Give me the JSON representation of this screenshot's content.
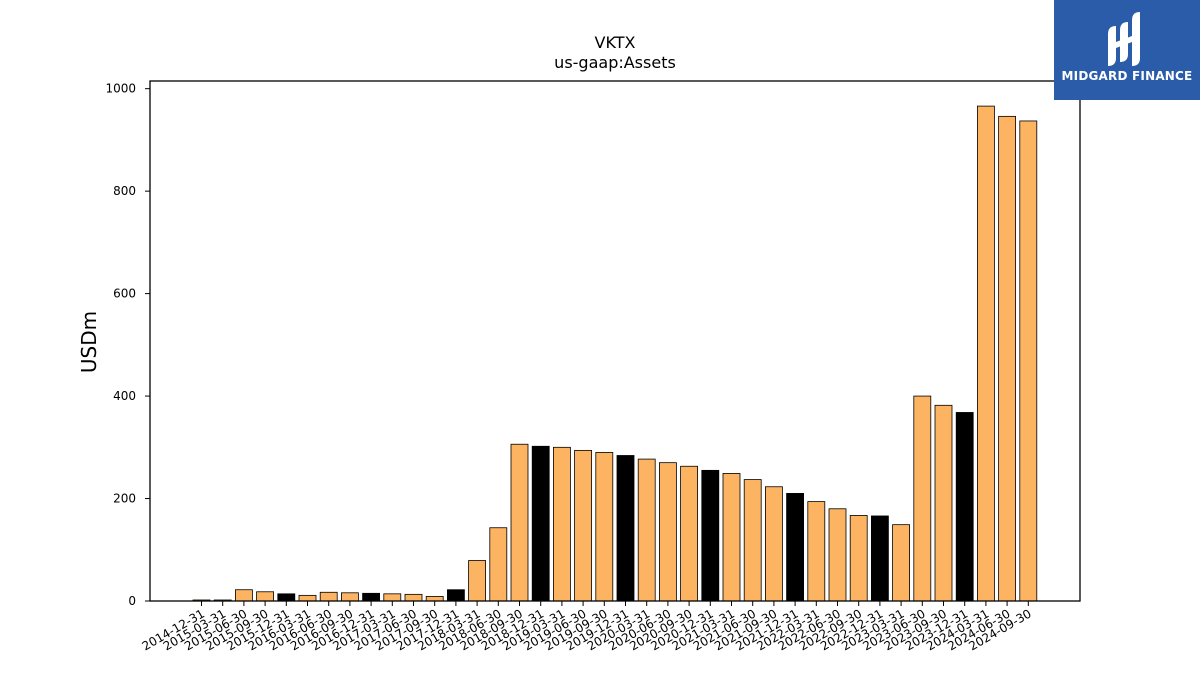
{
  "brand": {
    "name": "MIDGARD FINANCE",
    "logo_icon": "midgard-finance-logo-icon",
    "background_color": "#2a5caa"
  },
  "colors": {
    "bar_regular": "#fdb462",
    "bar_year_end": "#000000",
    "bar_edge": "#000000"
  },
  "chart_data": {
    "type": "bar",
    "title": "VKTX",
    "subtitle": "us-gaap:Assets",
    "xlabel": "",
    "ylabel": "USDm",
    "ylim": [
      0,
      1015
    ],
    "yticks": [
      0,
      200,
      400,
      600,
      800,
      1000
    ],
    "grid": false,
    "legend": "none",
    "categories": [
      "2014-12-31",
      "2015-03-31",
      "2015-06-30",
      "2015-09-30",
      "2015-12-31",
      "2016-03-31",
      "2016-06-30",
      "2016-09-30",
      "2016-12-31",
      "2017-03-31",
      "2017-06-30",
      "2017-09-30",
      "2017-12-31",
      "2018-03-31",
      "2018-06-30",
      "2018-09-30",
      "2018-12-31",
      "2019-03-31",
      "2019-06-30",
      "2019-09-30",
      "2019-12-31",
      "2020-03-31",
      "2020-06-30",
      "2020-09-30",
      "2020-12-31",
      "2021-03-31",
      "2021-06-30",
      "2021-09-30",
      "2021-12-31",
      "2022-03-31",
      "2022-06-30",
      "2022-09-30",
      "2022-12-31",
      "2023-03-31",
      "2023-06-30",
      "2023-09-30",
      "2023-12-31",
      "2024-03-31",
      "2024-06-30",
      "2024-09-30"
    ],
    "values": [
      2,
      2,
      22,
      18,
      14,
      11,
      17,
      16,
      15,
      14,
      13,
      9,
      22,
      79,
      143,
      306,
      302,
      300,
      294,
      290,
      284,
      277,
      270,
      263,
      255,
      249,
      237,
      223,
      210,
      194,
      180,
      167,
      166,
      149,
      400,
      382,
      368,
      966,
      946,
      937
    ],
    "highlight": [
      false,
      false,
      false,
      false,
      true,
      false,
      false,
      false,
      true,
      false,
      false,
      false,
      true,
      false,
      false,
      false,
      true,
      false,
      false,
      false,
      true,
      false,
      false,
      false,
      true,
      false,
      false,
      false,
      true,
      false,
      false,
      false,
      true,
      false,
      false,
      false,
      true,
      false,
      false,
      false
    ]
  }
}
